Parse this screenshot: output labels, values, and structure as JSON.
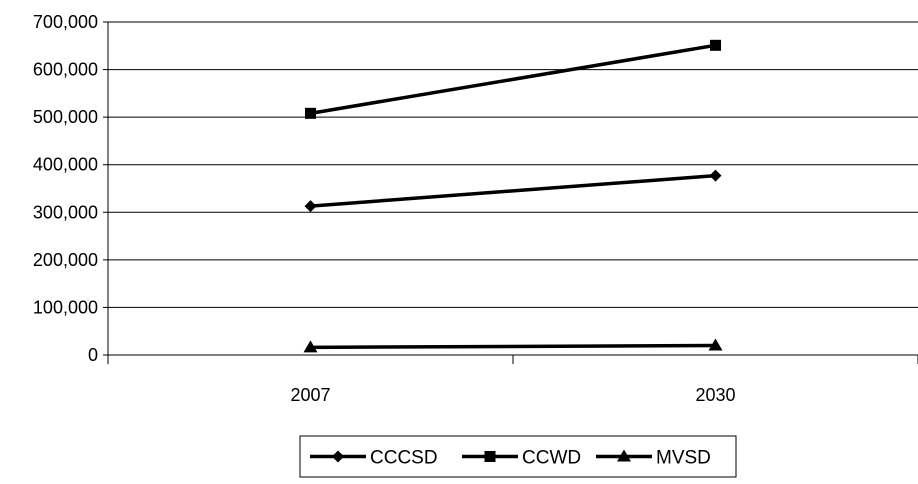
{
  "chart_data": {
    "type": "line",
    "title": "",
    "xlabel": "",
    "ylabel": "",
    "categories": [
      "2007",
      "2030"
    ],
    "ylim": [
      0,
      700000
    ],
    "yticks": [
      0,
      100000,
      200000,
      300000,
      400000,
      500000,
      600000,
      700000
    ],
    "ytick_labels": [
      "0",
      "100,000",
      "200,000",
      "300,000",
      "400,000",
      "500,000",
      "600,000",
      "700,000"
    ],
    "grid": "horizontal",
    "legend_position": "bottom",
    "series": [
      {
        "name": "CCCSD",
        "marker": "diamond",
        "values": [
          313000,
          377000
        ]
      },
      {
        "name": "CCWD",
        "marker": "square",
        "values": [
          508000,
          651000
        ]
      },
      {
        "name": "MVSD",
        "marker": "triangle",
        "values": [
          16000,
          20000
        ]
      }
    ],
    "colors": {
      "line": "#000000",
      "grid": "#000000",
      "background": "#ffffff"
    }
  }
}
